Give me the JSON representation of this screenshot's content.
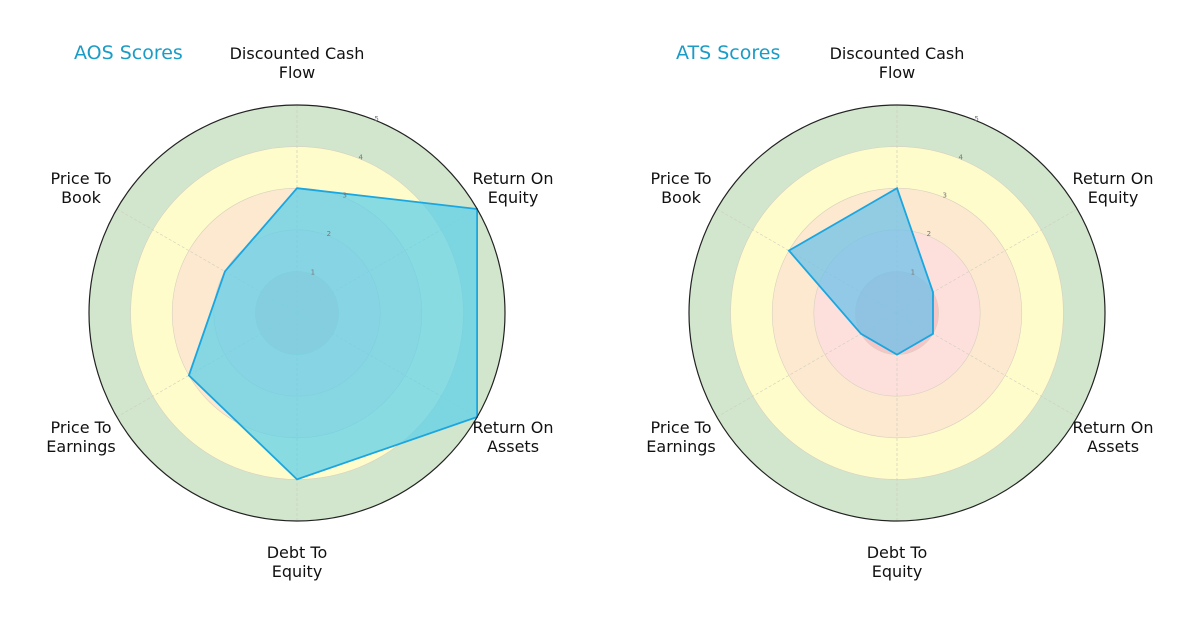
{
  "chart_data": [
    {
      "type": "radar",
      "title": "AOS Scores",
      "categories": [
        "Discounted Cash Flow",
        "Return On Equity",
        "Return On Assets",
        "Debt To Equity",
        "Price To Earnings",
        "Price To Book"
      ],
      "values": [
        3,
        5,
        5,
        4,
        3,
        2
      ],
      "rlim": [
        0,
        5
      ],
      "rticks": [
        "1",
        "2",
        "3",
        "4",
        "5"
      ],
      "fill_color": "#5fd0e8",
      "line_color": "#1aa6e0"
    },
    {
      "type": "radar",
      "title": "ATS Scores",
      "categories": [
        "Discounted Cash Flow",
        "Return On Equity",
        "Return On Assets",
        "Debt To Equity",
        "Price To Earnings",
        "Price To Book"
      ],
      "values": [
        3,
        1,
        1,
        1,
        1,
        3
      ],
      "rlim": [
        0,
        5
      ],
      "rticks": [
        "1",
        "2",
        "3",
        "4",
        "5"
      ],
      "fill_color": "#6ec1ea",
      "line_color": "#1aa6e0"
    }
  ],
  "left": {
    "title": "AOS Scores",
    "labels": [
      "Discounted Cash\nFlow",
      "Return On\nEquity",
      "Return On\nAssets",
      "Debt To\nEquity",
      "Price To\nEarnings",
      "Price To\nBook"
    ]
  },
  "right": {
    "title": "ATS Scores",
    "labels": [
      "Discounted Cash\nFlow",
      "Return On\nEquity",
      "Return On\nAssets",
      "Debt To\nEquity",
      "Price To\nEarnings",
      "Price To\nBook"
    ]
  },
  "bands": [
    {
      "from": 0,
      "to": 1,
      "color": "#f6c6c6"
    },
    {
      "from": 1,
      "to": 2,
      "color": "#fde0dc"
    },
    {
      "from": 2,
      "to": 3,
      "color": "#fde9cf"
    },
    {
      "from": 3,
      "to": 4,
      "color": "#fffccb"
    },
    {
      "from": 4,
      "to": 5,
      "color": "#d1e6cc"
    }
  ]
}
